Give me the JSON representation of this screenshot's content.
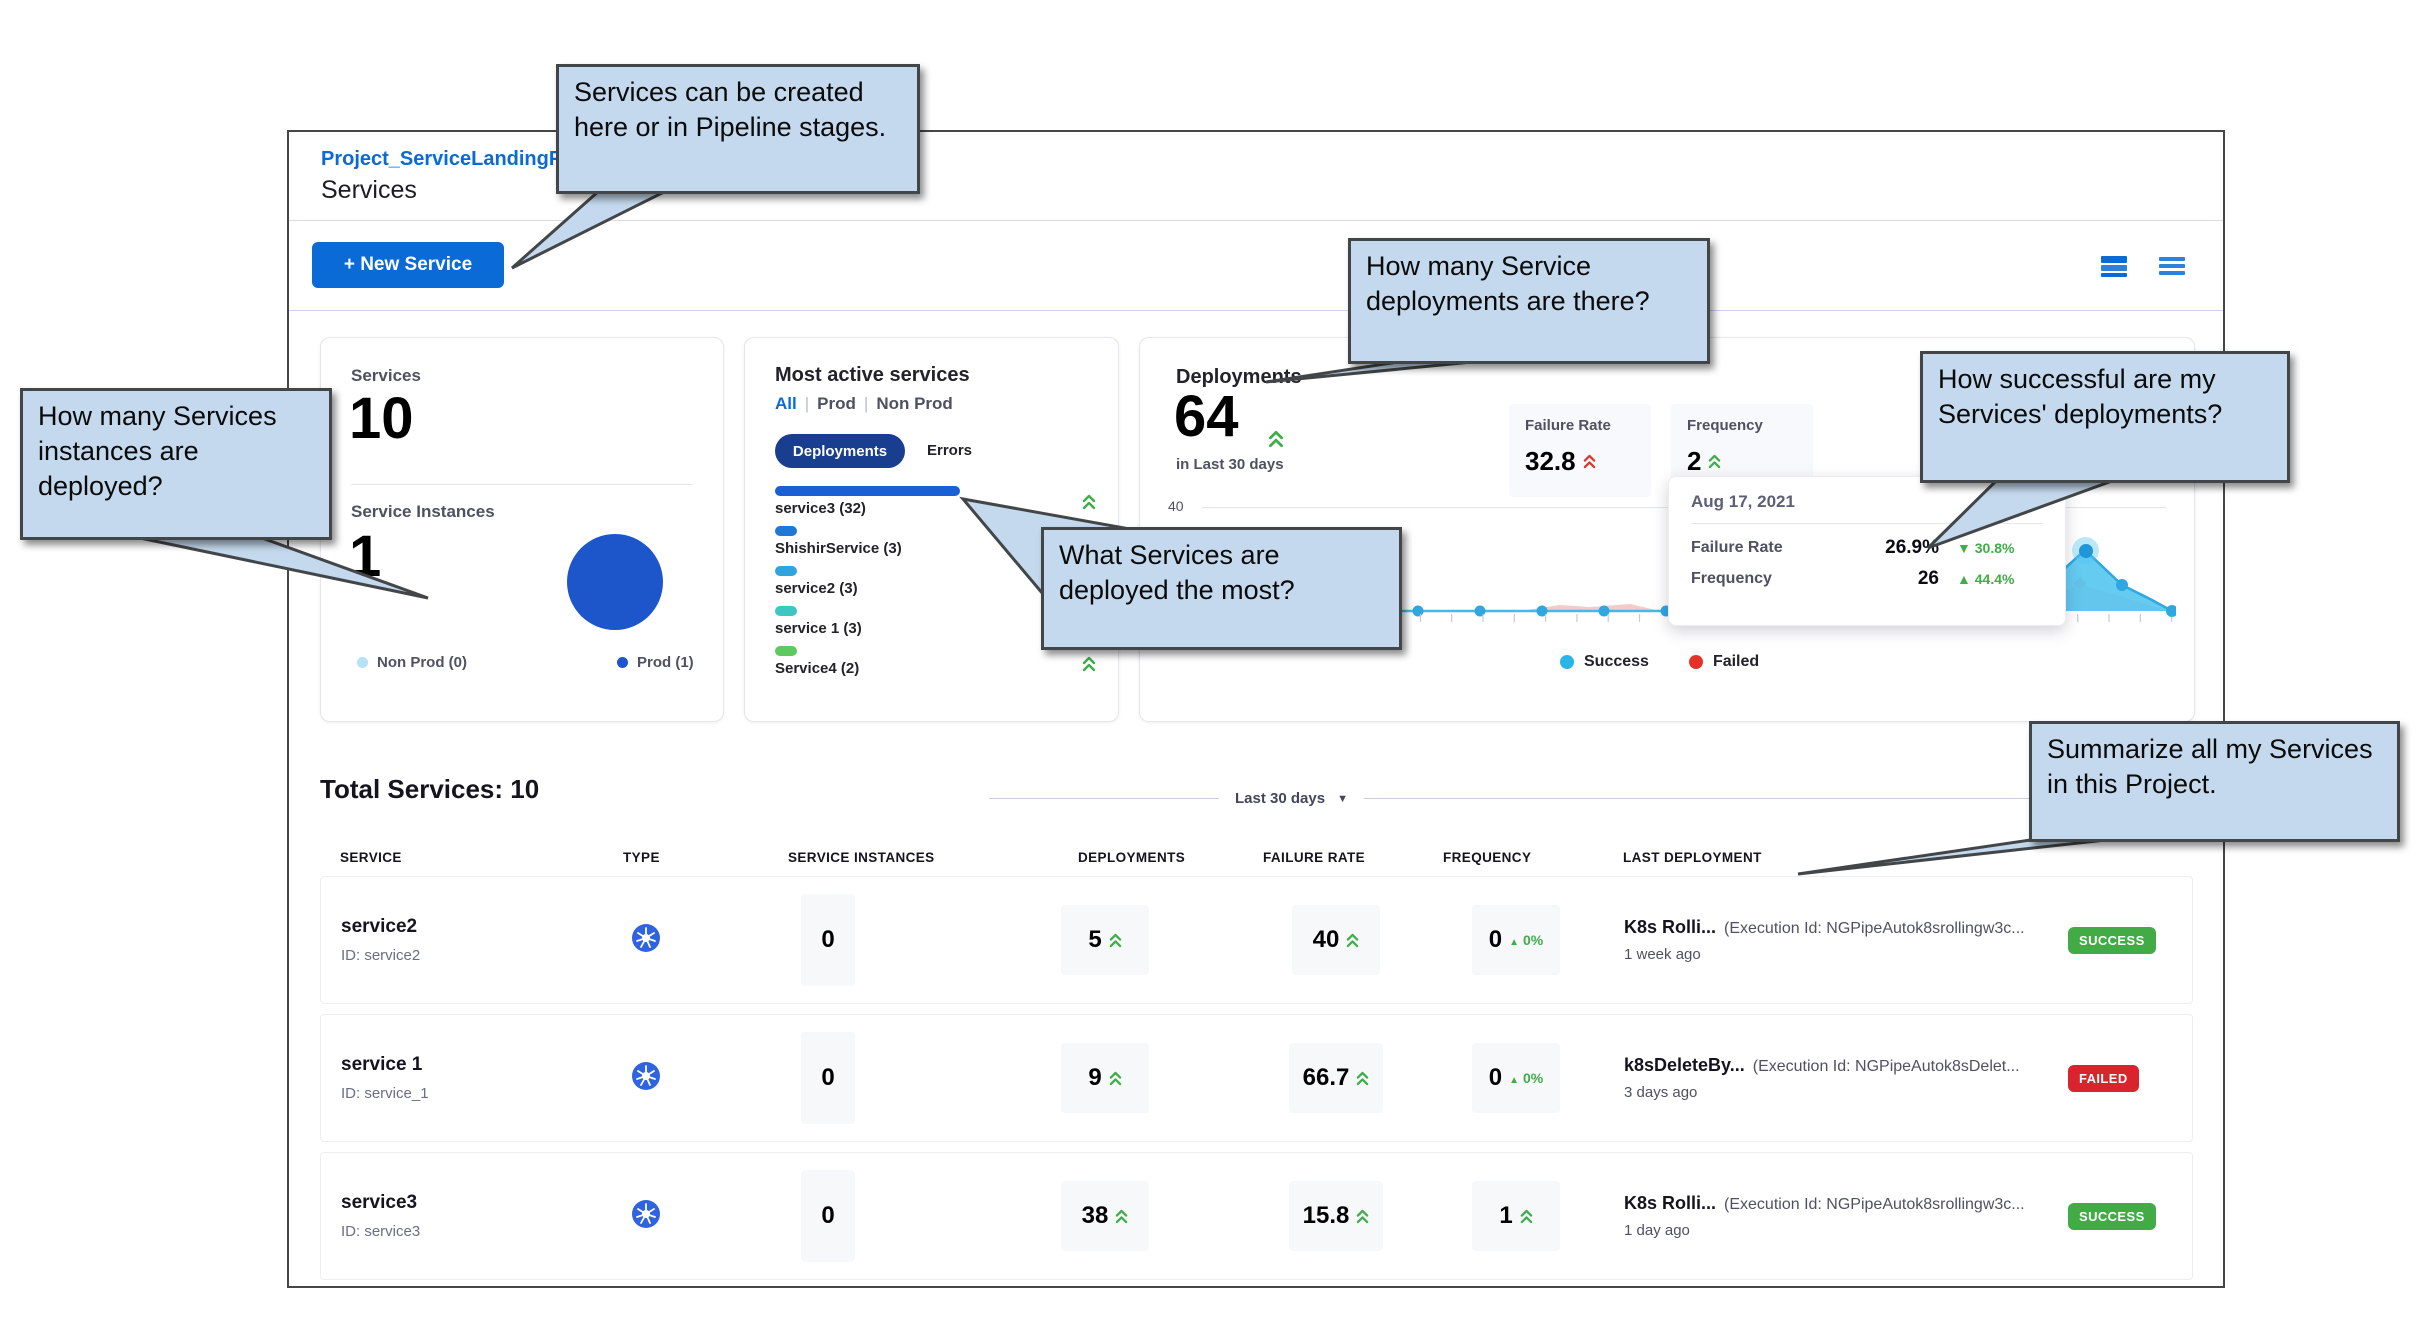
{
  "window": {
    "breadcrumb": "Project_ServiceLandingPag",
    "page_title": "Services",
    "new_service_button": "+ New Service"
  },
  "callouts": {
    "create": "Services can be created here or in Pipeline stages.",
    "instances": "How many Services instances are deployed?",
    "deployments": "How many Service deployments are there?",
    "success": "How successful are my Services' deployments?",
    "most_deployed": "What Services are deployed the most?",
    "summarize": "Summarize all my Services in this Project."
  },
  "services_card": {
    "services_label": "Services",
    "services_count": "10",
    "instances_label": "Service Instances",
    "instances_count": "1",
    "legend": [
      {
        "label": "Non Prod (0)",
        "color": "#b5e2f5"
      },
      {
        "label": "Prod (1)",
        "color": "#1d55cb"
      }
    ]
  },
  "active_card": {
    "title": "Most active services",
    "filters": [
      "All",
      "Prod",
      "Non Prod"
    ],
    "active_filter": "All",
    "toggle_deployments": "Deployments",
    "toggle_errors": "Errors",
    "max_value": 32,
    "bars": [
      {
        "label": "service3 (32)",
        "value": 32,
        "color": "#1a5fd4",
        "trend": "up"
      },
      {
        "label": "ShishirService (3)",
        "value": 3,
        "color": "#1f78d4",
        "trend": null
      },
      {
        "label": "service2 (3)",
        "value": 3,
        "color": "#31a3dd",
        "trend": null
      },
      {
        "label": "service 1 (3)",
        "value": 3,
        "color": "#3ec6c2",
        "trend": null
      },
      {
        "label": "Service4 (2)",
        "value": 2,
        "color": "#5ec95f",
        "trend": "up"
      }
    ]
  },
  "deployments_card": {
    "title": "Deployments",
    "count": "64",
    "subtitle": "in Last 30 days",
    "failure_rate_label": "Failure Rate",
    "failure_rate": "32.8",
    "frequency_label": "Frequency",
    "frequency": "2",
    "y_tick": "40",
    "tooltip": {
      "date": "Aug 17, 2021",
      "rows": [
        {
          "label": "Failure Rate",
          "value": "26.9%",
          "dir": "▼",
          "change": "30.8%"
        },
        {
          "label": "Frequency",
          "value": "26",
          "dir": "▲",
          "change": "44.4%"
        }
      ]
    },
    "legend": [
      {
        "label": "Success",
        "color": "#29b5e8"
      },
      {
        "label": "Failed",
        "color": "#e43326"
      }
    ]
  },
  "summary": {
    "total_services": "Total Services: 10",
    "range": "Last 30 days"
  },
  "table": {
    "headers": [
      "SERVICE",
      "TYPE",
      "SERVICE INSTANCES",
      "DEPLOYMENTS",
      "FAILURE RATE",
      "FREQUENCY",
      "LAST DEPLOYMENT"
    ],
    "rows": [
      {
        "name": "service2",
        "id": "ID: service2",
        "instances": "0",
        "deployments": "5",
        "failure_rate": "40",
        "frequency": "0",
        "freq_change": "0%",
        "pipeline": "K8s Rolli...",
        "execution": "(Execution Id: NGPipeAutok8srollingw3c...",
        "time": "1 week ago",
        "status": "SUCCESS"
      },
      {
        "name": "service 1",
        "id": "ID: service_1",
        "instances": "0",
        "deployments": "9",
        "failure_rate": "66.7",
        "frequency": "0",
        "freq_change": "0%",
        "pipeline": "k8sDeleteBy...",
        "execution": "(Execution Id: NGPipeAutok8sDelet...",
        "time": "3 days ago",
        "status": "FAILED"
      },
      {
        "name": "service3",
        "id": "ID: service3",
        "instances": "0",
        "deployments": "38",
        "failure_rate": "15.8",
        "frequency": "1",
        "freq_change": null,
        "pipeline": "K8s Rolli...",
        "execution": "(Execution Id: NGPipeAutok8srollingw3c...",
        "time": "1 day ago",
        "status": "SUCCESS"
      }
    ]
  },
  "icons": {
    "grid_view": "grid-view-icon",
    "list_view": "list-view-icon",
    "service_type": "kubernetes-icon",
    "trend_up": "chevrons-up-icon",
    "trend_down": "triangle-down-icon"
  },
  "colors": {
    "primary_blue": "#0a6ad6",
    "pill_navy": "#1a3e8f",
    "success_badge": "#42ab45",
    "failed_badge": "#d9232d",
    "trend_green": "#3fae49",
    "trend_red": "#e0352b",
    "chart_success": "#29b5e8",
    "chart_failed": "#e43326",
    "callout_bg": "#c4d9ed"
  }
}
